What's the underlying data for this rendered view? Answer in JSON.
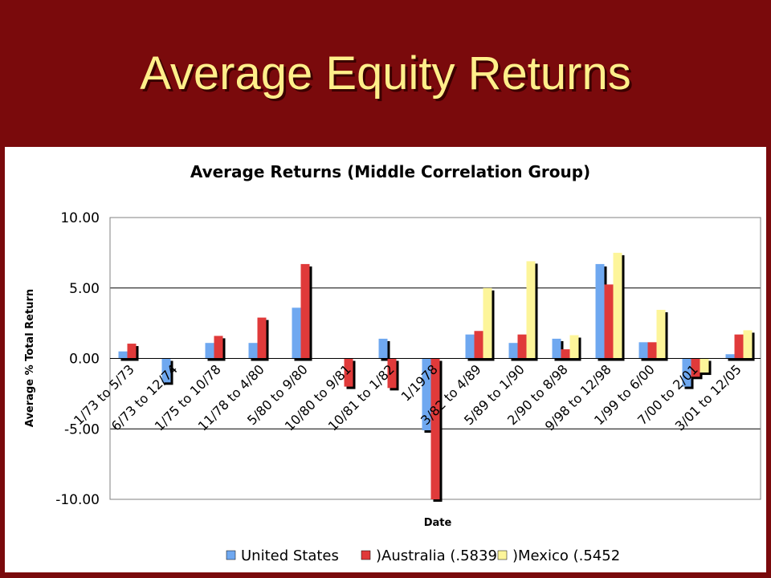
{
  "slide": {
    "title": "Average Equity Returns"
  },
  "colors": {
    "background": "#7a0a0c",
    "title": "#ffef8a"
  },
  "chart_data": {
    "type": "bar",
    "title": "Average Returns (Middle Correlation Group)",
    "xlabel": "Date",
    "ylabel": "Average % Total Return",
    "ylim": [
      -10,
      10
    ],
    "yticks": [
      "10.00",
      "5.00",
      "0.00",
      "-5.00",
      "-10.00"
    ],
    "grid": true,
    "legend": "bottom",
    "categories": [
      "1/73 to 5/73",
      "6/73 to 12/74",
      "1/75 to 10/78",
      "11/78 to 4/80",
      "5/80 to 9/80",
      "10/80 to 9/81",
      "10/81 to 1/82",
      "1/1978",
      "3/82 to 4/89",
      "5/89 to 1/90",
      "2/90 to 8/98",
      "9/98 to 12/98",
      "1/99 to 6/00",
      "7/00 to 2/01",
      "3/01 to 12/05"
    ],
    "series": [
      {
        "name": "United States",
        "color": "#6fa8f0",
        "values": [
          0.5,
          -1.7,
          1.1,
          1.1,
          3.6,
          0,
          1.4,
          -5.1,
          1.7,
          1.1,
          1.4,
          6.7,
          1.15,
          -2.0,
          0.3
        ]
      },
      {
        "name": ")Australia (.5839",
        "color": "#e03a3a",
        "values": [
          1.05,
          0,
          1.6,
          2.9,
          6.7,
          -2.0,
          -2.1,
          -10.0,
          1.95,
          1.7,
          0.65,
          5.25,
          1.15,
          -1.3,
          1.7
        ]
      },
      {
        "name": ")Mexico (.5452",
        "color": "#fdf59a",
        "values": [
          0,
          0,
          0,
          0,
          0,
          0,
          0,
          0,
          5.0,
          6.9,
          1.65,
          7.5,
          3.45,
          -1.0,
          2.0
        ]
      }
    ]
  }
}
